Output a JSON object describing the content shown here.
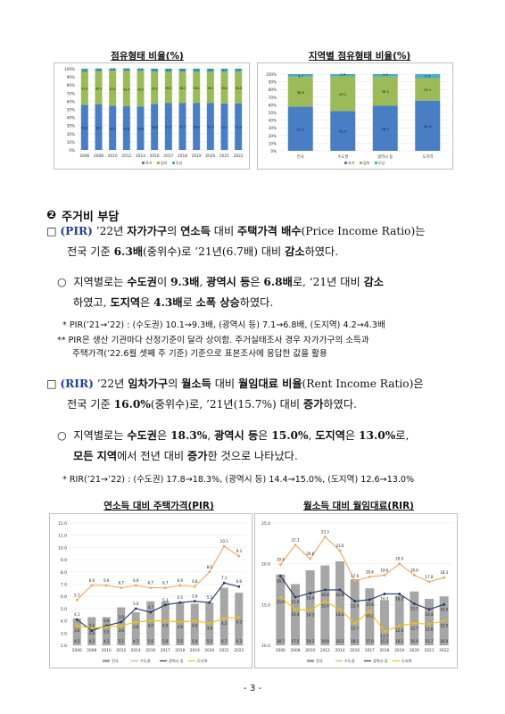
{
  "top_left_chart": {
    "title": "점유형태 비율(%)",
    "type": "stacked-bar",
    "ytick_labels": [
      "100%",
      "90%",
      "80%",
      "70%",
      "60%",
      "50%",
      "40%",
      "30%",
      "20%",
      "10%",
      "0%"
    ],
    "categories": [
      "2006",
      "2008",
      "2010",
      "2012",
      "2014",
      "2016",
      "2017",
      "2018",
      "2019",
      "2020",
      "2021",
      "2022"
    ],
    "series": [
      {
        "name": "자가",
        "color": "#4a7ec4",
        "values": [
          55.6,
          56.4,
          54.3,
          53.8,
          53.6,
          56.8,
          57.7,
          57.7,
          58.0,
          57.9,
          57.3,
          57.5
        ]
      },
      {
        "name": "임차",
        "color": "#9bbb59",
        "values": [
          41.4,
          40.3,
          43.1,
          43.4,
          43.5,
          39.2,
          38.5,
          38.3,
          38.1,
          38.2,
          39.0,
          38.8
        ]
      },
      {
        "name": "무상",
        "color": "#4bacc6",
        "values": [
          3.0,
          3.3,
          2.6,
          2.8,
          2.9,
          4.0,
          3.8,
          4.0,
          3.9,
          3.9,
          3.7,
          3.7
        ]
      }
    ],
    "legend": [
      "자가",
      "임차",
      "무상"
    ]
  },
  "top_right_chart": {
    "title": "지역별 점유형태 비율(%)",
    "type": "stacked-bar",
    "ytick_labels": [
      "100%",
      "90%",
      "80%",
      "70%",
      "60%",
      "50%",
      "40%",
      "30%",
      "20%",
      "10%",
      "0%"
    ],
    "categories": [
      "전국",
      "수도권",
      "광역시 등",
      "도지역"
    ],
    "series": [
      {
        "name": "자가",
        "color": "#4a7ec4",
        "values": [
          57.5,
          51.9,
          58.7,
          65.4
        ]
      },
      {
        "name": "임차",
        "color": "#9bbb59",
        "values": [
          38.8,
          45.2,
          38.0,
          29.1
        ]
      },
      {
        "name": "무상",
        "color": "#4bacc6",
        "values": [
          3.7,
          2.9,
          3.3,
          5.4
        ]
      }
    ],
    "legend": [
      "자가",
      "임차",
      "무상"
    ]
  },
  "section": {
    "number": "❷",
    "title": "주거비 부담"
  },
  "pir": {
    "checkbox": "□",
    "tag": "(PIR)",
    "l1_a": "’22년 ",
    "l1_b": "자가가구",
    "l1_c": "의 ",
    "l1_d": "연소득",
    "l1_e": " 대비 ",
    "l1_f": "주택가격 배수",
    "l1_g": "(Price Income Ratio)는",
    "l2_a": "전국 기준 ",
    "l2_b": "6.3배",
    "l2_c": "(중위수)로 ’21년(6.7배) 대비 ",
    "l2_d": "감소",
    "l2_e": "하였다.",
    "sub_bullet": "○",
    "sub1_a": "지역별로는 ",
    "sub1_b": "수도권",
    "sub1_c": "이 ",
    "sub1_d": "9.3배",
    "sub1_e": ", ",
    "sub1_f": "광역시 등",
    "sub1_g": "은 ",
    "sub1_h": "6.8배",
    "sub1_i": "로, ‘21년 대비 ",
    "sub1_j": "감소",
    "sub2_a": "하였고, ",
    "sub2_b": "도지역",
    "sub2_c": "은 ",
    "sub2_d": "4.3배",
    "sub2_e": "로 ",
    "sub2_f": "소폭 상승",
    "sub2_g": "하였다.",
    "note1": "* PIR(’21→’22) : (수도권) 10.1→9.3배, (광역시 등) 7.1→6.8배, (도지역) 4.2→4.3배",
    "note2a": "** PIR은 생산 기관마다 산정기준이 달라 상이함. 주거실태조사 경우 자가가구의 소득과",
    "note2b": "주택가격(’22.6월 셋째 주 기준) 기준으로 표본조사에 응답한 값을 활용"
  },
  "rir": {
    "checkbox": "□",
    "tag": "(RIR)",
    "l1_a": "’22년 ",
    "l1_b": "임차가구",
    "l1_c": "의 ",
    "l1_d": "월소득",
    "l1_e": " 대비 ",
    "l1_f": "월임대료 비율",
    "l1_g": "(Rent Income Ratio)은",
    "l2_a": "전국 기준 ",
    "l2_b": "16.0%",
    "l2_c": "(중위수)로, ’21년(15.7%) 대비 ",
    "l2_d": "증가",
    "l2_e": "하였다.",
    "sub_bullet": "○",
    "sub1_a": "지역별로는 ",
    "sub1_b": "수도권",
    "sub1_c": "은 ",
    "sub1_d": "18.3%",
    "sub1_e": ", ",
    "sub1_f": "광역시 등",
    "sub1_g": "은 ",
    "sub1_h": "15.0%",
    "sub1_i": ", ",
    "sub1_j": "도지역",
    "sub1_k": "은 ",
    "sub1_l": "13.0%",
    "sub1_m": "로,",
    "sub2_a": "모든 지역",
    "sub2_b": "에서 전년 대비 ",
    "sub2_c": "증가",
    "sub2_d": "한 것으로 나타났다.",
    "note1": "* RIR(’21→’22) : (수도권) 17.8→18.3%, (광역시 등) 14.4→15.0%, (도지역) 12.6→13.0%"
  },
  "bottom_left_chart": {
    "title": "연소득 대비 주택가격(PIR)",
    "type": "bar+line",
    "ylim": [
      2.0,
      12.0
    ],
    "ytick_labels": [
      "12.0",
      "11.0",
      "10.0",
      "9.0",
      "8.0",
      "7.0",
      "6.0",
      "5.0",
      "4.0",
      "3.0",
      "2.0"
    ],
    "categories": [
      "2006",
      "2008",
      "2010",
      "2012",
      "2014",
      "2016",
      "2017",
      "2018",
      "2019",
      "2020",
      "2021",
      "2022"
    ],
    "bar_series": {
      "name": "전국",
      "color": "#a6a6a6",
      "values": [
        4.2,
        4.3,
        4.3,
        5.1,
        4.7,
        5.6,
        5.6,
        5.5,
        5.4,
        5.5,
        6.7,
        6.3
      ]
    },
    "series": [
      {
        "name": "수도권",
        "color": "#f4a460",
        "values": [
          5.7,
          6.9,
          6.9,
          6.7,
          6.9,
          6.7,
          6.7,
          6.9,
          6.8,
          8.0,
          10.1,
          9.3
        ]
      },
      {
        "name": "광역시 등",
        "color": "#1f3864",
        "values": [
          4.1,
          3.2,
          3.6,
          3.9,
          5.0,
          4.7,
          5.3,
          5.5,
          5.6,
          5.5,
          7.1,
          6.8
        ]
      },
      {
        "name": "도지역",
        "color": "#f2c200",
        "values": [
          3.6,
          3.4,
          3.5,
          3.6,
          3.9,
          4.0,
          4.0,
          3.9,
          4.0,
          3.8,
          4.2,
          4.3
        ]
      }
    ],
    "legend": [
      "전국",
      "수도권",
      "광역시 등",
      "도지역"
    ]
  },
  "bottom_right_chart": {
    "title": "월소득 대비 월임대료(RIR)",
    "type": "bar+line",
    "ylim": [
      10.0,
      25.0
    ],
    "ytick_labels": [
      "25.0",
      "20.0",
      "15.0",
      "10.0"
    ],
    "categories": [
      "2006",
      "2008",
      "2010",
      "2012",
      "2014",
      "2016",
      "2017",
      "2018",
      "2019",
      "2020",
      "2021",
      "2022"
    ],
    "bar_series": {
      "name": "전국",
      "color": "#a6a6a6",
      "values": [
        18.7,
        17.5,
        19.2,
        19.8,
        20.3,
        18.1,
        17.0,
        15.5,
        16.1,
        16.6,
        15.7,
        16.0
      ]
    },
    "series": [
      {
        "name": "수도권",
        "color": "#f4a460",
        "values": [
          19.9,
          22.3,
          20.6,
          23.3,
          21.6,
          17.9,
          18.4,
          18.6,
          20.0,
          18.6,
          17.8,
          18.3
        ]
      },
      {
        "name": "광역시 등",
        "color": "#1f3864",
        "values": [
          18.5,
          15.9,
          16.4,
          16.8,
          16.8,
          15.4,
          15.6,
          16.3,
          16.3,
          15.1,
          14.4,
          15.0
        ]
      },
      {
        "name": "도지역",
        "color": "#f2c200",
        "values": [
          15.9,
          14.4,
          14.3,
          15.4,
          14.4,
          12.7,
          14.2,
          11.7,
          12.4,
          12.7,
          12.6,
          13.0
        ]
      }
    ],
    "legend": [
      "전국",
      "수도권",
      "광역시 등",
      "도지역"
    ]
  },
  "page_number": "- 3 -"
}
